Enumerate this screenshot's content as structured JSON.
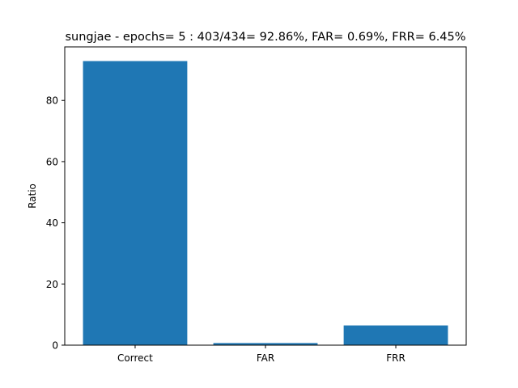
{
  "chart_data": {
    "type": "bar",
    "title": "sungjae - epochs= 5 : 403/434= 92.86%, FAR= 0.69%, FRR= 6.45%",
    "xlabel": "",
    "ylabel": "Ratio",
    "categories": [
      "Correct",
      "FAR",
      "FRR"
    ],
    "values": [
      92.86,
      0.69,
      6.45
    ],
    "ylim": [
      0,
      97.5
    ],
    "yticks": [
      0,
      20,
      40,
      60,
      80
    ],
    "grid": false,
    "bar_color": "#1f77b4"
  }
}
